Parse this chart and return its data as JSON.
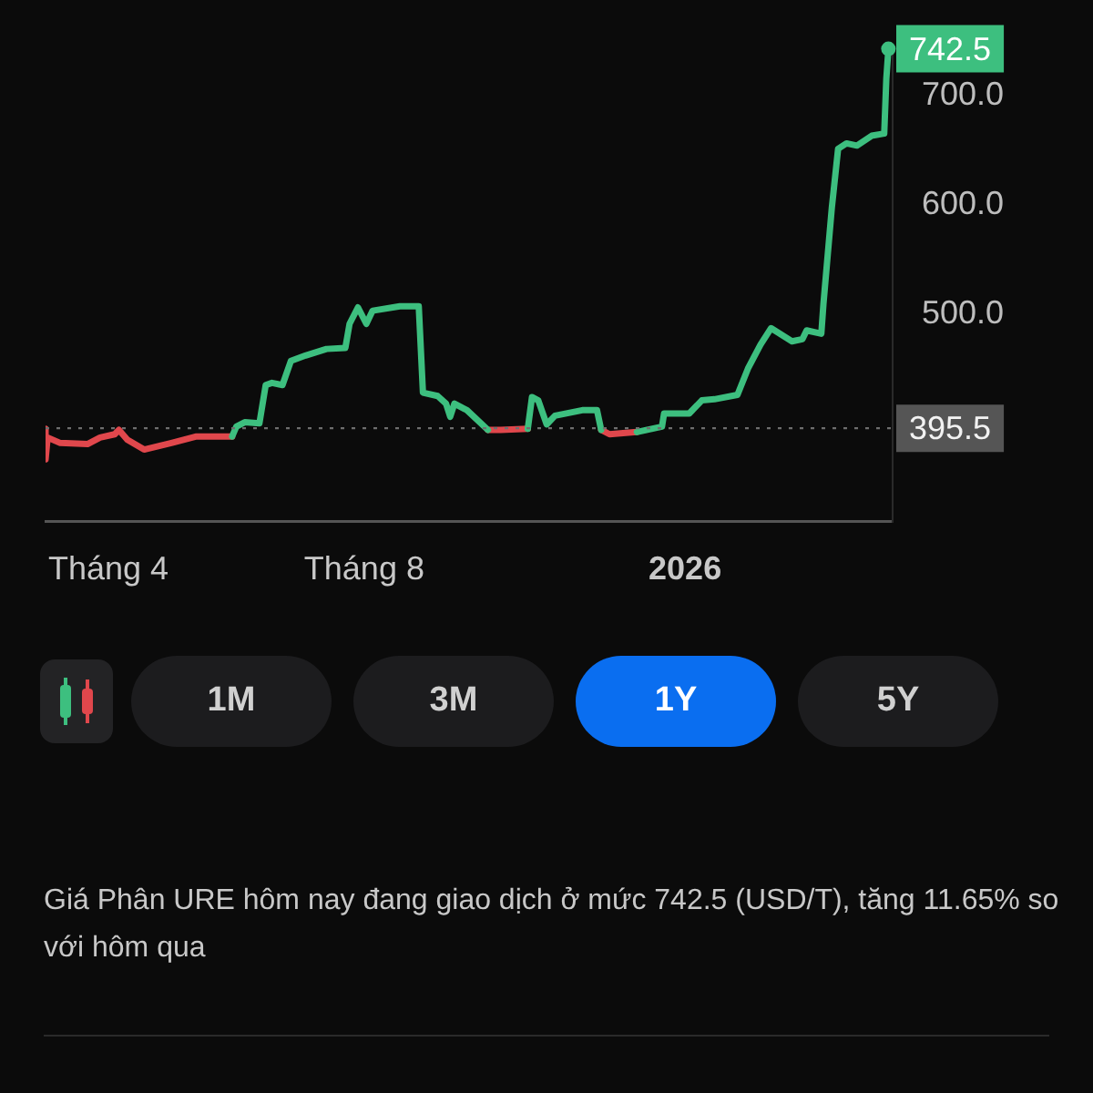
{
  "chart_data": {
    "type": "line",
    "x": [
      "2025-03-02",
      "2025-03-02",
      "2025-03-03",
      "2025-03-09",
      "2025-03-22",
      "2025-03-28",
      "2025-04-04",
      "2025-04-06",
      "2025-04-10",
      "2025-04-18",
      "2025-05-01",
      "2025-05-13",
      "2025-05-30",
      "2025-06-01",
      "2025-06-05",
      "2025-06-12",
      "2025-06-15",
      "2025-06-18",
      "2025-06-23",
      "2025-06-27",
      "2025-07-04",
      "2025-07-14",
      "2025-07-23",
      "2025-07-25",
      "2025-07-29",
      "2025-08-02",
      "2025-08-05",
      "2025-08-18",
      "2025-08-27",
      "2025-08-29",
      "2025-09-05",
      "2025-09-09",
      "2025-09-11",
      "2025-09-13",
      "2025-09-19",
      "2025-09-29",
      "2025-10-05",
      "2025-10-18",
      "2025-10-20",
      "2025-10-23",
      "2025-10-27",
      "2025-10-31",
      "2025-11-13",
      "2025-11-20",
      "2025-11-22",
      "2025-11-26",
      "2025-12-09",
      "2025-12-21",
      "2025-12-22",
      "2026-01-03",
      "2026-01-09",
      "2026-01-15",
      "2026-01-26",
      "2026-01-31",
      "2026-02-06",
      "2026-02-11",
      "2026-02-21",
      "2026-02-26",
      "2026-02-28",
      "2026-03-07",
      "2026-03-08",
      "2026-03-12",
      "2026-03-15",
      "2026-03-19",
      "2026-03-24",
      "2026-03-31",
      "2026-04-06",
      "2026-04-07",
      "2026-04-08"
    ],
    "series": [
      {
        "color": "#3dbf7f",
        "values": [
          null,
          null,
          null,
          null,
          null,
          null,
          null,
          null,
          null,
          null,
          null,
          null,
          388,
          397,
          401,
          400,
          435,
          437,
          435,
          457,
          462,
          468,
          469,
          491,
          506,
          491,
          503,
          507,
          507,
          428,
          425,
          418,
          406,
          418,
          412,
          394,
          null,
          395,
          424,
          421,
          399,
          407,
          412,
          412,
          394,
          null,
          392,
          397,
          409,
          409,
          421,
          422,
          426,
          450,
          472,
          487,
          475,
          477,
          485,
          482,
          509,
          597,
          651,
          656,
          654,
          663,
          665,
          715,
          742.5
        ]
      },
      {
        "color": "#e0474c",
        "values": [
          395,
          367,
          387,
          382,
          381,
          387,
          390,
          394,
          385,
          376,
          382,
          388,
          388,
          null,
          null,
          null,
          null,
          null,
          null,
          null,
          null,
          null,
          null,
          null,
          null,
          null,
          null,
          null,
          null,
          null,
          null,
          null,
          null,
          null,
          null,
          394,
          394,
          395,
          null,
          null,
          null,
          null,
          null,
          null,
          394,
          390,
          392,
          null,
          null,
          null,
          null,
          null,
          null,
          null,
          null,
          null,
          null,
          null,
          null,
          null,
          null,
          null,
          null,
          null,
          null,
          null,
          null,
          null,
          null
        ]
      }
    ],
    "xlim": [
      "2025-03-02",
      "2026-04-10"
    ],
    "xticks": [
      {
        "value": "2025-04",
        "label": "Tháng 4"
      },
      {
        "value": "2025-08",
        "label": "Tháng 8"
      },
      {
        "value": "2026",
        "label": "2026"
      }
    ],
    "ylim": [
      310,
      742.5
    ],
    "yticks": [
      {
        "value": 500,
        "label": "500.0"
      },
      {
        "value": 600,
        "label": "600.0"
      },
      {
        "value": 700,
        "label": "700.0"
      }
    ],
    "ref_lines": [
      {
        "axis": "y",
        "value": 395.5,
        "label": "395.5",
        "color": "#6e6e6e",
        "line_style": "dotted"
      }
    ],
    "annotations": [
      {
        "text": "742.5",
        "x": "2026-04-08",
        "y": 742.5
      },
      "1M",
      "3M",
      "1Y",
      "5Y",
      "Giá Phân URE hôm nay đang giao dịch ở mức 742.5 (USD/T), tăng 11.65% so với hôm qua"
    ],
    "grid": false,
    "legend": false,
    "marker": "none",
    "line_style": "solid"
  }
}
